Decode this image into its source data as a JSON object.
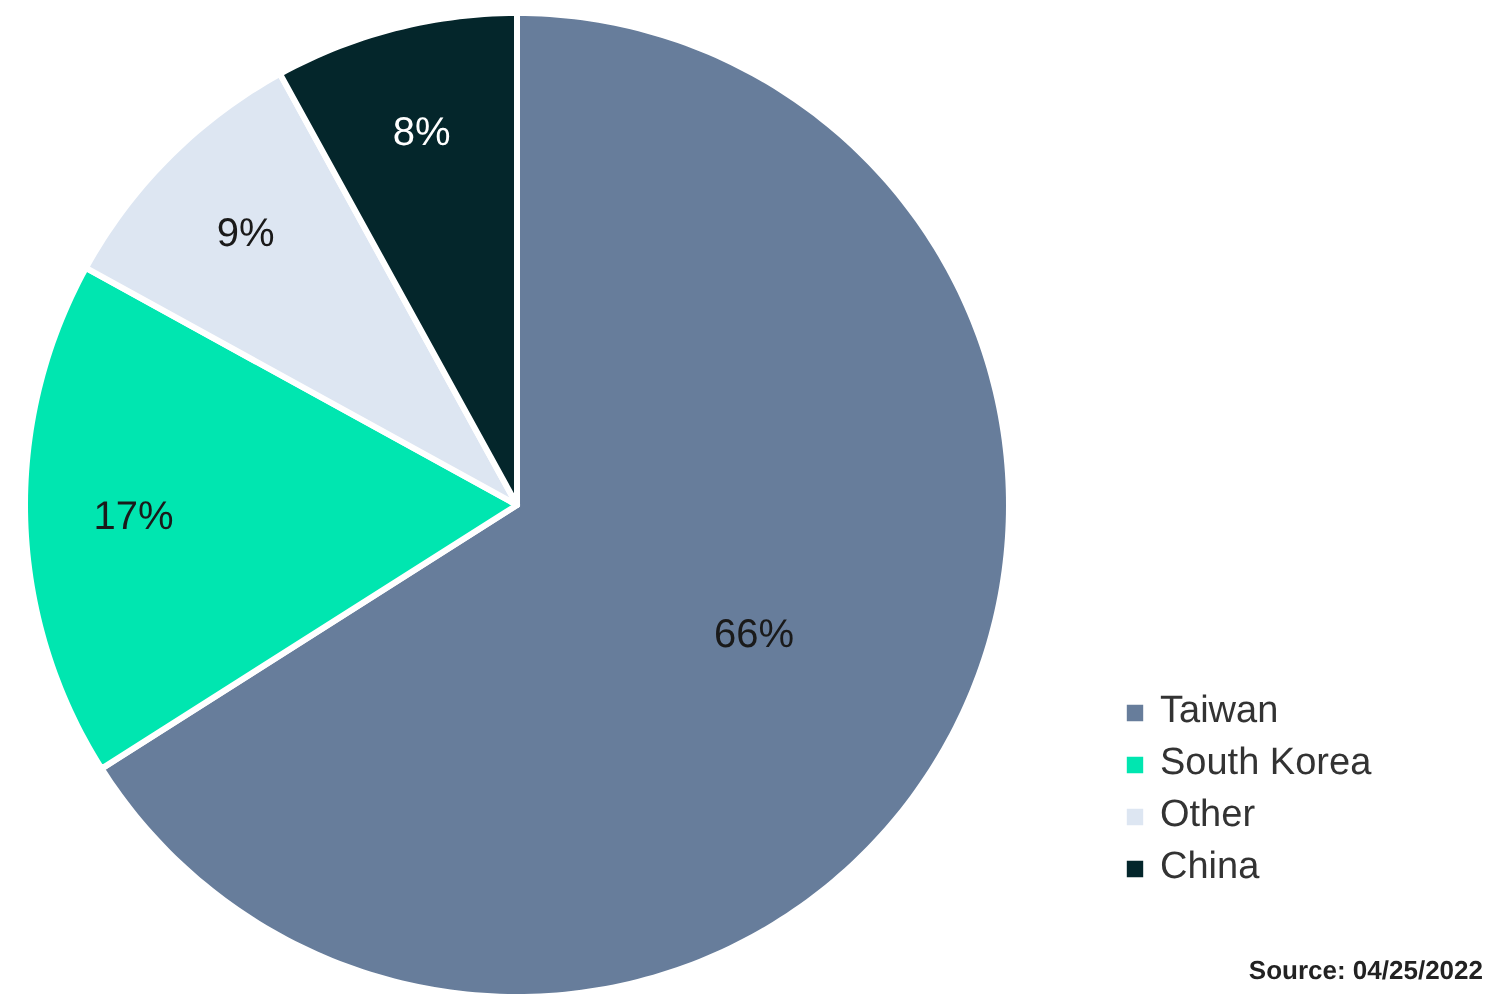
{
  "chart_data": {
    "type": "pie",
    "categories": [
      "Taiwan",
      "South Korea",
      "Other",
      "China"
    ],
    "values": [
      66,
      17,
      9,
      8
    ],
    "colors": [
      "#677d9b",
      "#00e6b0",
      "#dde6f2",
      "#04262b"
    ],
    "value_labels": [
      "66%",
      "17%",
      "9%",
      "8%"
    ],
    "legend": "bottom right",
    "annotations": [
      "Source: 04/25/2022"
    ]
  }
}
